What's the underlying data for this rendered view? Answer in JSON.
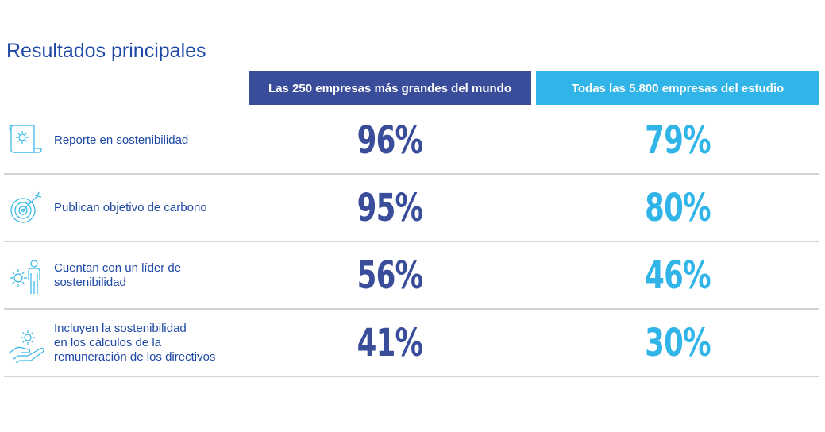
{
  "title": "Resultados principales",
  "colors": {
    "dark_blue": "#3a4d9b",
    "light_blue": "#31b5e8",
    "label_blue": "#1e49a5"
  },
  "headers": {
    "col_a": "Las 250 empresas más grandes del mundo",
    "col_b": "Todas las 5.800 empresas del estudio"
  },
  "rows": [
    {
      "icon": "document-gear-icon",
      "label_lines": [
        "Reporte en sostenibilidad"
      ],
      "value_a": "96%",
      "value_b": "79%"
    },
    {
      "icon": "target-arrow-icon",
      "label_lines": [
        "Publican objetivo de carbono"
      ],
      "value_a": "95%",
      "value_b": "80%"
    },
    {
      "icon": "person-gear-icon",
      "label_lines": [
        "Cuentan con un líder de",
        "sostenibilidad"
      ],
      "value_a": "56%",
      "value_b": "46%"
    },
    {
      "icon": "hand-gear-icon",
      "label_lines": [
        "Incluyen la sostenibilidad",
        "en los cálculos de la",
        "remuneración de los directivos"
      ],
      "value_a": "41%",
      "value_b": "30%"
    }
  ],
  "chart_data": {
    "type": "table",
    "title": "Resultados principales",
    "columns": [
      "Las 250 empresas más grandes del mundo",
      "Todas las 5.800 empresas del estudio"
    ],
    "rows": [
      {
        "label": "Reporte en sostenibilidad",
        "values": [
          96,
          79
        ]
      },
      {
        "label": "Publican objetivo de carbono",
        "values": [
          95,
          80
        ]
      },
      {
        "label": "Cuentan con un líder de sostenibilidad",
        "values": [
          56,
          46
        ]
      },
      {
        "label": "Incluyen la sostenibilidad en los cálculos de la remuneración de los directivos",
        "values": [
          41,
          30
        ]
      }
    ],
    "unit": "%"
  }
}
